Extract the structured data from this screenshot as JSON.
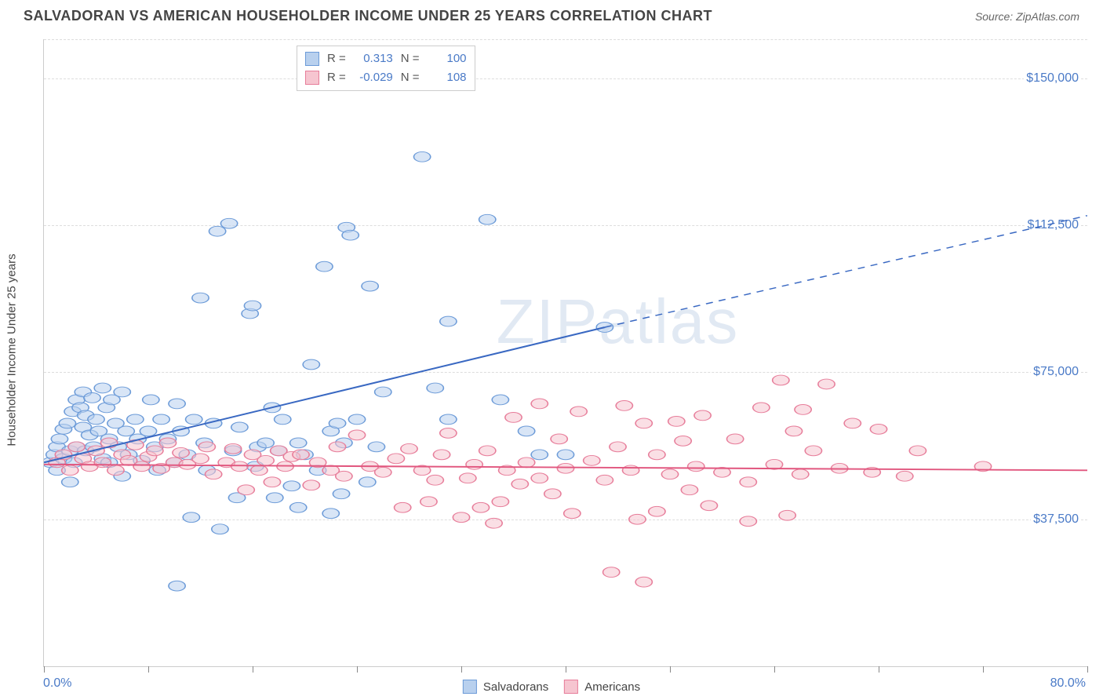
{
  "header": {
    "title": "SALVADORAN VS AMERICAN HOUSEHOLDER INCOME UNDER 25 YEARS CORRELATION CHART",
    "source": "Source: ZipAtlas.com"
  },
  "watermark": "ZIPatlas",
  "chart": {
    "type": "scatter",
    "ylabel": "Householder Income Under 25 years",
    "xlim": [
      0,
      80
    ],
    "ylim": [
      0,
      160000
    ],
    "x_axis_label_left": "0.0%",
    "x_axis_label_right": "80.0%",
    "ytick_values": [
      37500,
      75000,
      112500,
      150000
    ],
    "ytick_labels": [
      "$37,500",
      "$75,000",
      "$112,500",
      "$150,000"
    ],
    "xtick_positions": [
      0,
      8,
      16,
      24,
      32,
      40,
      48,
      56,
      64,
      72,
      80
    ],
    "grid_color": "#dddddd",
    "axis_color": "#cccccc",
    "tick_color": "#888888",
    "ytick_label_color": "#4a7ac7",
    "background_color": "#ffffff",
    "marker_radius": 8,
    "marker_stroke_width": 1.2,
    "line_width": 2.2,
    "series": [
      {
        "name": "Salvadorans",
        "fill_color": "#b8d0ee",
        "stroke_color": "#6c9bd8",
        "line_color": "#3968c2",
        "fill_opacity": 0.55,
        "R": "0.313",
        "N": "100",
        "trend": {
          "x1": 0,
          "y1": 52000,
          "x2": 43,
          "y2": 86500,
          "x2_dash": 80,
          "y2_dash": 115000
        },
        "points": [
          [
            0.5,
            52000
          ],
          [
            0.8,
            54000
          ],
          [
            1,
            56000
          ],
          [
            1,
            50000
          ],
          [
            1.2,
            58000
          ],
          [
            1.5,
            60500
          ],
          [
            1.5,
            53000
          ],
          [
            1.8,
            62000
          ],
          [
            2,
            55000
          ],
          [
            2,
            47000
          ],
          [
            2.2,
            65000
          ],
          [
            2.3,
            52000
          ],
          [
            2.5,
            68000
          ],
          [
            2.5,
            56000
          ],
          [
            2.8,
            66000
          ],
          [
            3,
            61000
          ],
          [
            3,
            70000
          ],
          [
            3.2,
            55000
          ],
          [
            3.2,
            64000
          ],
          [
            3.5,
            59000
          ],
          [
            3.7,
            68500
          ],
          [
            3.8,
            56000
          ],
          [
            4,
            63000
          ],
          [
            4.2,
            60000
          ],
          [
            4.5,
            71000
          ],
          [
            4.5,
            53000
          ],
          [
            4.8,
            66000
          ],
          [
            5,
            58000
          ],
          [
            5,
            52000
          ],
          [
            5.2,
            68000
          ],
          [
            5.5,
            62000
          ],
          [
            5.7,
            56000
          ],
          [
            6,
            70000
          ],
          [
            6,
            48500
          ],
          [
            6.3,
            60000
          ],
          [
            6.5,
            54000
          ],
          [
            7,
            63000
          ],
          [
            7.2,
            58000
          ],
          [
            7.5,
            52500
          ],
          [
            8,
            60000
          ],
          [
            8.2,
            68000
          ],
          [
            8.5,
            56000
          ],
          [
            8.7,
            50000
          ],
          [
            9,
            63000
          ],
          [
            9.5,
            58000
          ],
          [
            10,
            52000
          ],
          [
            10.2,
            67000
          ],
          [
            10.5,
            60000
          ],
          [
            11,
            54000
          ],
          [
            11.3,
            38000
          ],
          [
            11.5,
            63000
          ],
          [
            12,
            94000
          ],
          [
            12.3,
            57000
          ],
          [
            12.5,
            50000
          ],
          [
            13,
            62000
          ],
          [
            13.3,
            111000
          ],
          [
            13.5,
            35000
          ],
          [
            14.2,
            113000
          ],
          [
            14.5,
            55000
          ],
          [
            14.8,
            43000
          ],
          [
            15,
            61000
          ],
          [
            15.8,
            90000
          ],
          [
            16,
            92000
          ],
          [
            16.2,
            51000
          ],
          [
            16.4,
            56000
          ],
          [
            17,
            57000
          ],
          [
            17.5,
            66000
          ],
          [
            17.7,
            43000
          ],
          [
            18,
            55000
          ],
          [
            18.3,
            63000
          ],
          [
            19,
            46000
          ],
          [
            19.5,
            57000
          ],
          [
            20,
            54000
          ],
          [
            20.5,
            77000
          ],
          [
            21,
            50000
          ],
          [
            21.5,
            102000
          ],
          [
            22,
            60000
          ],
          [
            22.5,
            62000
          ],
          [
            22.8,
            44000
          ],
          [
            23,
            57000
          ],
          [
            23.2,
            112000
          ],
          [
            23.5,
            110000
          ],
          [
            24,
            63000
          ],
          [
            24.8,
            47000
          ],
          [
            25,
            97000
          ],
          [
            25.5,
            56000
          ],
          [
            26,
            70000
          ],
          [
            29,
            130000
          ],
          [
            30,
            71000
          ],
          [
            31,
            63000
          ],
          [
            31,
            88000
          ],
          [
            34,
            114000
          ],
          [
            35,
            68000
          ],
          [
            37,
            60000
          ],
          [
            38,
            54000
          ],
          [
            40,
            54000
          ],
          [
            43,
            86500
          ],
          [
            10.2,
            20500
          ],
          [
            19.5,
            40500
          ],
          [
            22,
            39000
          ]
        ]
      },
      {
        "name": "Americans",
        "fill_color": "#f6c5d0",
        "stroke_color": "#e77d9a",
        "line_color": "#e1567e",
        "fill_opacity": 0.55,
        "R": "-0.029",
        "N": "108",
        "trend": {
          "x1": 0,
          "y1": 51500,
          "x2": 80,
          "y2": 50000,
          "x2_dash": 80,
          "y2_dash": 50000
        },
        "points": [
          [
            1,
            52000
          ],
          [
            1.5,
            54000
          ],
          [
            2,
            50000
          ],
          [
            2.5,
            56000
          ],
          [
            3,
            53000
          ],
          [
            3.5,
            51000
          ],
          [
            4,
            55000
          ],
          [
            4.5,
            52000
          ],
          [
            5,
            57000
          ],
          [
            5.5,
            50000
          ],
          [
            6,
            54000
          ],
          [
            6.5,
            52500
          ],
          [
            7,
            56500
          ],
          [
            7.5,
            51000
          ],
          [
            8,
            53500
          ],
          [
            8.5,
            55000
          ],
          [
            9,
            50500
          ],
          [
            9.5,
            57000
          ],
          [
            10,
            52000
          ],
          [
            10.5,
            54500
          ],
          [
            11,
            51500
          ],
          [
            12,
            53000
          ],
          [
            12.5,
            56000
          ],
          [
            13,
            49000
          ],
          [
            14,
            52000
          ],
          [
            14.5,
            55500
          ],
          [
            15,
            51000
          ],
          [
            15.5,
            45000
          ],
          [
            16,
            54000
          ],
          [
            16.5,
            50000
          ],
          [
            17,
            52500
          ],
          [
            17.5,
            47000
          ],
          [
            18,
            55000
          ],
          [
            18.5,
            51000
          ],
          [
            19,
            53500
          ],
          [
            19.7,
            54000
          ],
          [
            20.5,
            46200
          ],
          [
            21,
            52000
          ],
          [
            22,
            50000
          ],
          [
            22.5,
            56000
          ],
          [
            23,
            48500
          ],
          [
            24,
            59000
          ],
          [
            25,
            51000
          ],
          [
            26,
            49500
          ],
          [
            27,
            53000
          ],
          [
            27.5,
            40500
          ],
          [
            28,
            55500
          ],
          [
            29,
            50000
          ],
          [
            29.5,
            42000
          ],
          [
            30,
            47500
          ],
          [
            30.5,
            54000
          ],
          [
            31,
            59500
          ],
          [
            32,
            38000
          ],
          [
            32.5,
            48000
          ],
          [
            33,
            51500
          ],
          [
            33.5,
            40500
          ],
          [
            34,
            55000
          ],
          [
            34.5,
            36500
          ],
          [
            35,
            42000
          ],
          [
            35.5,
            50000
          ],
          [
            36,
            63500
          ],
          [
            36.5,
            46500
          ],
          [
            37,
            52000
          ],
          [
            38,
            48000
          ],
          [
            38,
            67000
          ],
          [
            39,
            44000
          ],
          [
            39.5,
            58000
          ],
          [
            40,
            50500
          ],
          [
            40.5,
            39000
          ],
          [
            41,
            65000
          ],
          [
            42,
            52500
          ],
          [
            43,
            47500
          ],
          [
            43.5,
            24000
          ],
          [
            44,
            56000
          ],
          [
            44.5,
            66500
          ],
          [
            45,
            50000
          ],
          [
            45.5,
            37500
          ],
          [
            46,
            62000
          ],
          [
            46,
            21500
          ],
          [
            47,
            54000
          ],
          [
            47,
            39500
          ],
          [
            48,
            49000
          ],
          [
            49,
            57500
          ],
          [
            49.5,
            45000
          ],
          [
            50,
            51000
          ],
          [
            50.5,
            64000
          ],
          [
            51,
            41000
          ],
          [
            52,
            49500
          ],
          [
            53,
            58000
          ],
          [
            54,
            47000
          ],
          [
            55,
            66000
          ],
          [
            56,
            51500
          ],
          [
            56.5,
            73000
          ],
          [
            57,
            38500
          ],
          [
            57.5,
            60000
          ],
          [
            58,
            49000
          ],
          [
            58.2,
            65500
          ],
          [
            59,
            55000
          ],
          [
            60,
            72000
          ],
          [
            61,
            50500
          ],
          [
            62,
            62000
          ],
          [
            63.5,
            49500
          ],
          [
            64,
            60500
          ],
          [
            66,
            48500
          ],
          [
            67,
            55000
          ],
          [
            72,
            51000
          ],
          [
            54,
            37000
          ],
          [
            48.5,
            62500
          ]
        ]
      }
    ]
  },
  "legend_bottom": [
    {
      "label": "Salvadorans",
      "fill": "#b8d0ee",
      "stroke": "#6c9bd8"
    },
    {
      "label": "Americans",
      "fill": "#f6c5d0",
      "stroke": "#e77d9a"
    }
  ]
}
